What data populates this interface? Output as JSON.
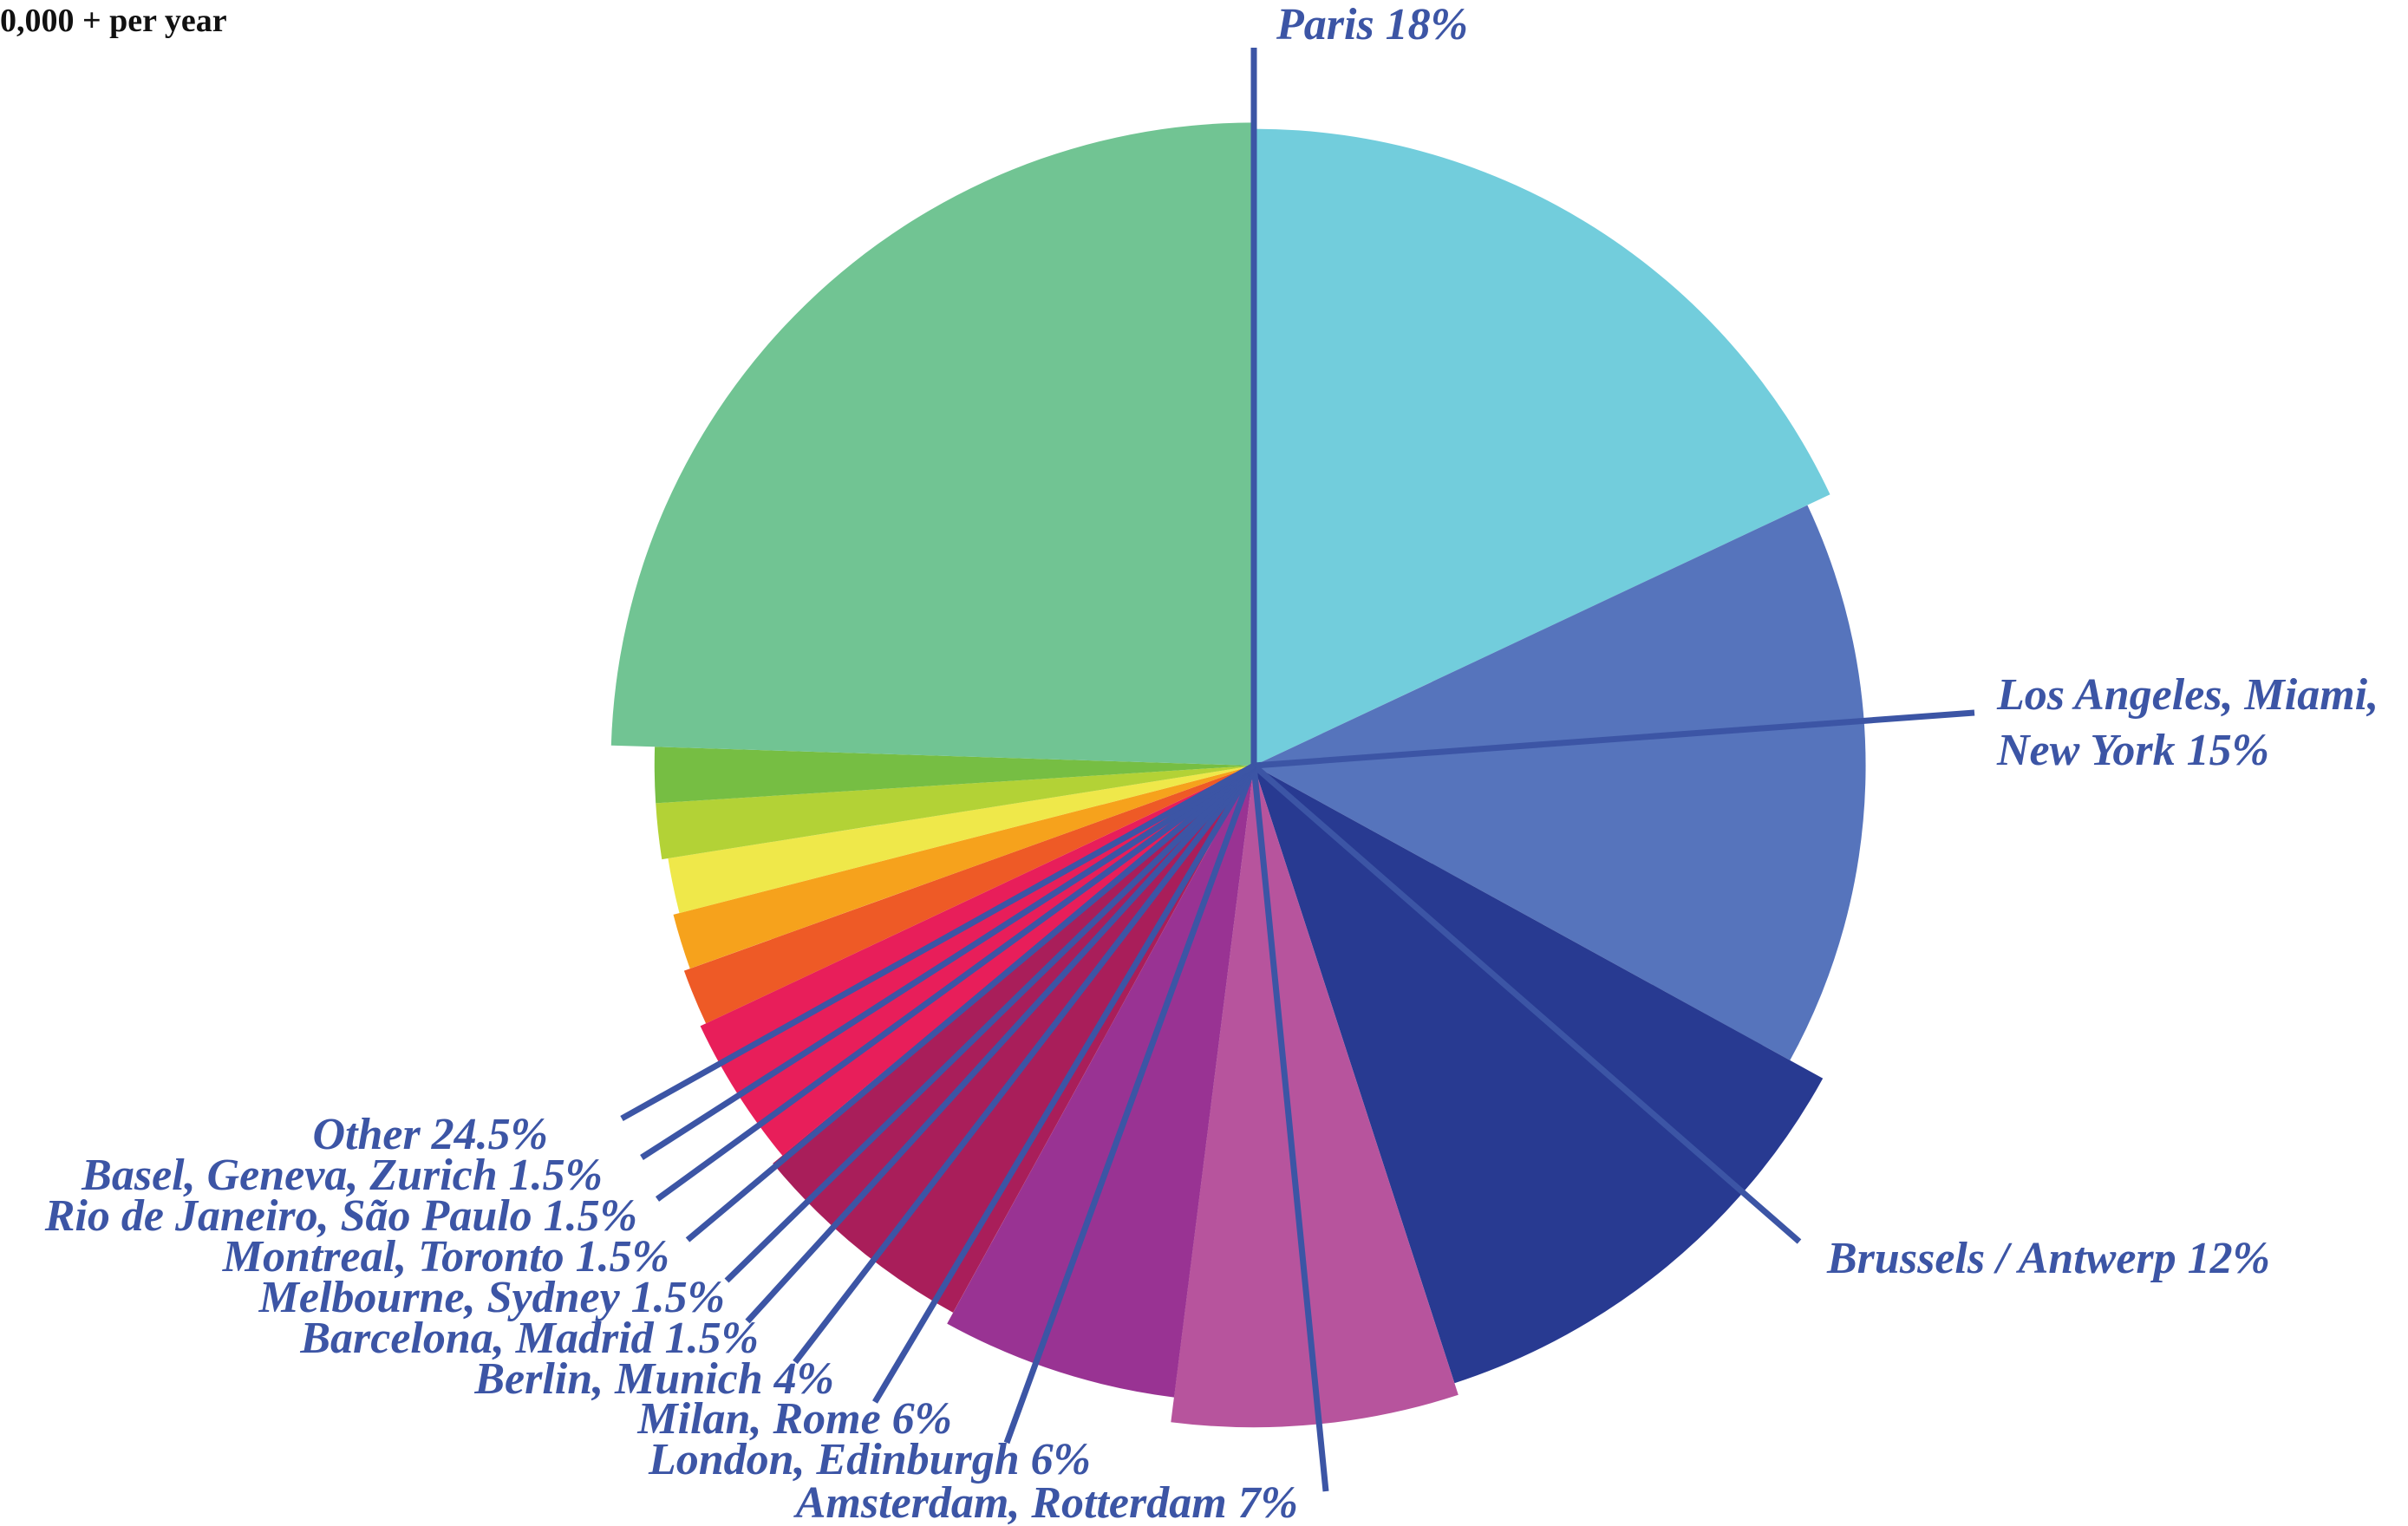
{
  "caption": "0,000 + per year",
  "chart_data": {
    "type": "pie",
    "title": "",
    "legend": "callout-labels",
    "label_color": "#3c55a5",
    "slices": [
      {
        "label": "Paris",
        "value": 18,
        "value_text": "18%",
        "display": "Paris 18%",
        "color": "#72cddc"
      },
      {
        "label": "Los Angeles, Miami, New York",
        "value": 15,
        "value_text": "15%",
        "display_lines": [
          "Los Angeles, Miami,",
          "New York 15%"
        ],
        "color": "#5674bc"
      },
      {
        "label": "Brussels / Antwerp",
        "value": 12,
        "value_text": "12%",
        "display": "Brussels / Antwerp 12%",
        "color": "#283a91"
      },
      {
        "label": "Amsterdam, Rotterdam",
        "value": 7,
        "value_text": "7%",
        "display": "Amsterdam, Rotterdam 7%",
        "color": "#b7549d"
      },
      {
        "label": "London, Edinburgh",
        "value": 6,
        "value_text": "6%",
        "display": "London, Edinburgh 6%",
        "color": "#993393"
      },
      {
        "label": "Milan, Rome",
        "value": 6,
        "value_text": "6%",
        "display": "Milan, Rome 6%",
        "color": "#a91e5a"
      },
      {
        "label": "Berlin, Munich",
        "value": 4,
        "value_text": "4%",
        "display": "Berlin, Munich 4%",
        "color": "#e81e5a"
      },
      {
        "label": "Barcelona, Madrid",
        "value": 1.5,
        "value_text": "1.5%",
        "display": "Barcelona, Madrid 1.5%",
        "color": "#ee5a26"
      },
      {
        "label": "Melbourne, Sydney",
        "value": 1.5,
        "value_text": "1.5%",
        "display": "Melbourne, Sydney 1.5%",
        "color": "#f6a21c"
      },
      {
        "label": "Montreal, Toronto",
        "value": 1.5,
        "value_text": "1.5%",
        "display": "Montreal, Toronto 1.5%",
        "color": "#efe84a"
      },
      {
        "label": "Rio de Janeiro, São Paulo",
        "value": 1.5,
        "value_text": "1.5%",
        "display": "Rio de Janeiro, São Paulo 1.5%",
        "color": "#b3d236"
      },
      {
        "label": "Basel, Geneva, Zurich",
        "value": 1.5,
        "value_text": "1.5%",
        "display": "Basel, Geneva, Zurich 1.5%",
        "color": "#76be43"
      },
      {
        "label": "Other",
        "value": 24.5,
        "value_text": "24.5%",
        "display": "Other 24.5%",
        "color": "#71c493"
      }
    ]
  }
}
